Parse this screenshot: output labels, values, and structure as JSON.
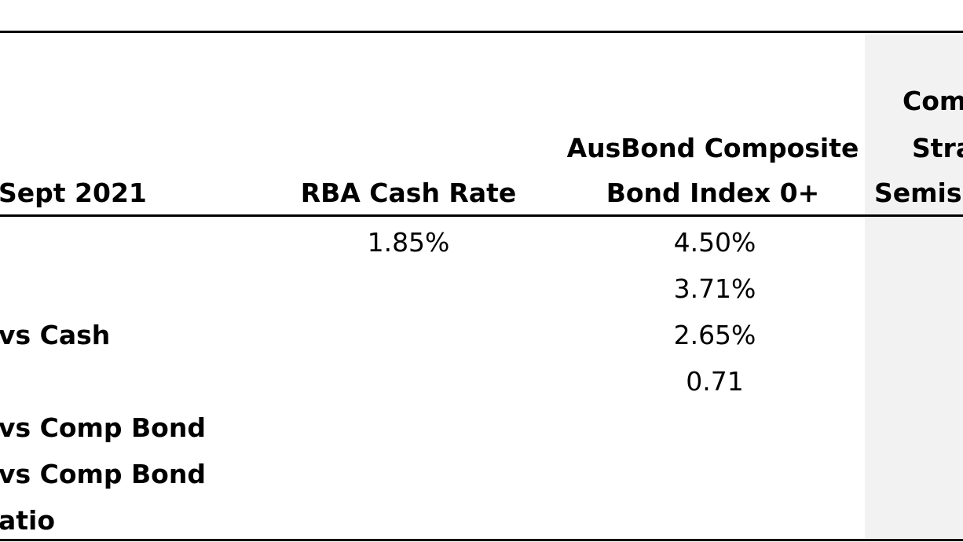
{
  "table": {
    "headers": {
      "col0": "Sept 2021",
      "col1": "RBA Cash Rate",
      "col2_line1": "AusBond Composite",
      "col2_line2": "Bond Index 0+",
      "col3_line1": "Com",
      "col3_line2": "Stra",
      "col3_line3": "Semis,"
    },
    "rows": [
      {
        "label": "",
        "rba": "1.85%",
        "ausbond": "4.50%"
      },
      {
        "label": "",
        "rba": "",
        "ausbond": "3.71%"
      },
      {
        "label": "vs Cash",
        "rba": "",
        "ausbond": "2.65%"
      },
      {
        "label": "",
        "rba": "",
        "ausbond": "0.71"
      },
      {
        "label": "vs Comp Bond",
        "rba": "",
        "ausbond": ""
      },
      {
        "label": "vs Comp Bond",
        "rba": "",
        "ausbond": ""
      },
      {
        "label": "atio",
        "rba": "",
        "ausbond": ""
      }
    ],
    "colors": {
      "text": "#000000",
      "rules": "#000000",
      "shaded_column": "#f2f2f2",
      "background": "#ffffff"
    }
  }
}
